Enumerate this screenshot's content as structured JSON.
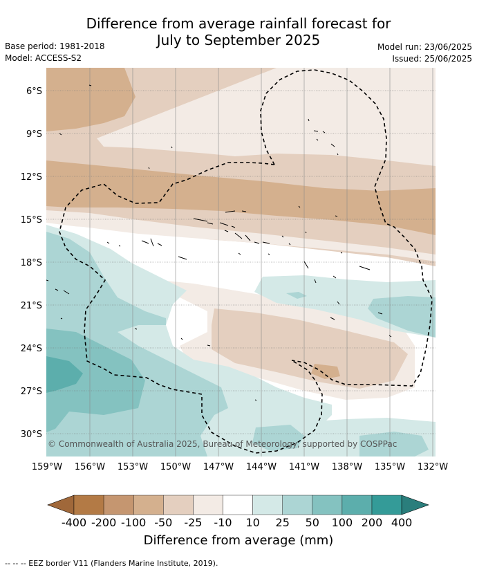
{
  "title_line1": "Difference from average rainfall forecast for",
  "title_line2": "July to September 2025",
  "meta_left": [
    "Base period: 1981-2018",
    "Model: ACCESS-S2"
  ],
  "meta_right": [
    "Model run: 23/06/2025",
    "Issued: 25/06/2025"
  ],
  "map": {
    "y_ticks": [
      "6°S",
      "9°S",
      "12°S",
      "15°S",
      "18°S",
      "21°S",
      "24°S",
      "27°S",
      "30°S"
    ],
    "x_ticks": [
      "159°W",
      "156°W",
      "153°W",
      "150°W",
      "147°W",
      "144°W",
      "141°W",
      "138°W",
      "135°W",
      "132°W"
    ],
    "copyright": "© Commonwealth of Australia 2025, Bureau of Meteorology, supported by COSPPac"
  },
  "colorbar": {
    "labels": [
      "-400",
      "-200",
      "-100",
      "-50",
      "-25",
      "-10",
      "10",
      "25",
      "50",
      "100",
      "200",
      "400"
    ],
    "colors": [
      "#a0683a",
      "#b37a45",
      "#c59670",
      "#d4b08e",
      "#e4cfbf",
      "#f3ebe5",
      "#ffffff",
      "#d4e9e7",
      "#acd5d4",
      "#84c2c0",
      "#5caeac",
      "#349b98",
      "#2a7e7c"
    ],
    "title": "Difference from average (mm)"
  },
  "footnote": "--  --  -- EEZ border V11 (Flanders Marine Institute, 2019)."
}
